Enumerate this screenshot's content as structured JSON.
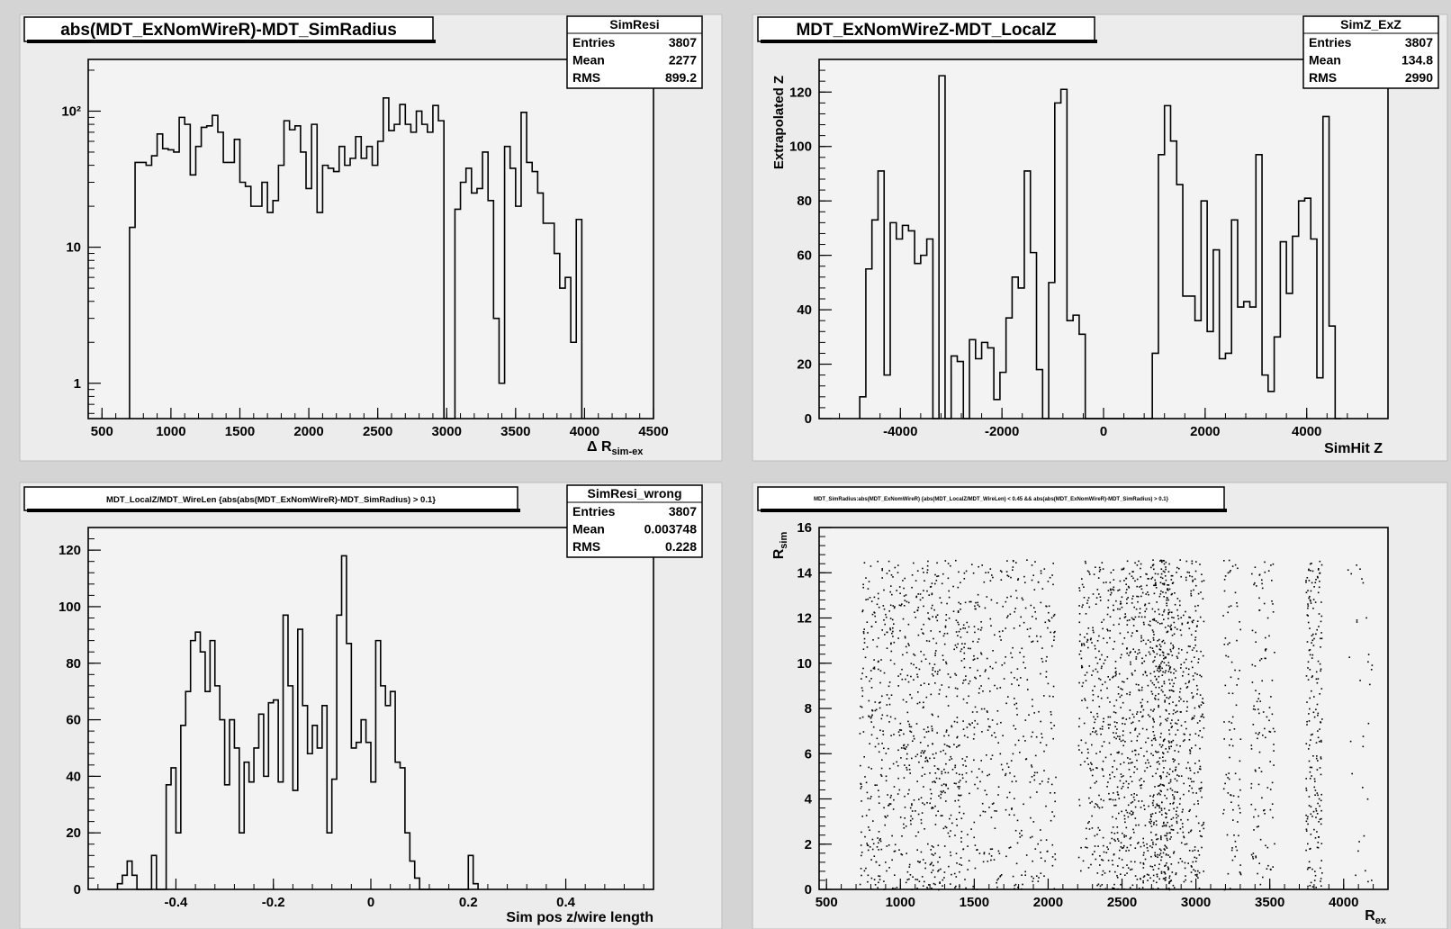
{
  "colors": {
    "background": "#d4d4d4",
    "pad": "#ececec",
    "frame": "#f3f3f3",
    "line": "#000000",
    "header_text": "#1a4fd6"
  },
  "chart_data": [
    {
      "type": "bar",
      "histogram_id": "SimResi",
      "title": "abs(MDT_ExNomWireR)-MDT_SimRadius",
      "xlabel": "Δ R",
      "xlabel_sub": "sim-ex",
      "ylabel": "",
      "log_y": true,
      "xlim": [
        400,
        4500
      ],
      "ylim": [
        0.55,
        240
      ],
      "x_ticks": [
        500,
        1000,
        1500,
        2000,
        2500,
        3000,
        3500,
        4000,
        4500
      ],
      "y_ticks": [
        1,
        10,
        100
      ],
      "y_tick_labels": [
        "1",
        "10",
        "10²"
      ],
      "stats": [
        [
          "Entries",
          "3807"
        ],
        [
          "Mean",
          "2277"
        ],
        [
          "RMS",
          "899.2"
        ]
      ],
      "bin_start": 700,
      "bin_width": 40,
      "values": [
        14,
        42,
        42,
        40,
        47,
        68,
        53,
        52,
        50,
        90,
        80,
        34,
        55,
        76,
        78,
        93,
        70,
        42,
        42,
        62,
        30,
        28,
        20,
        20,
        30,
        18,
        22,
        40,
        85,
        73,
        78,
        50,
        27,
        80,
        18,
        40,
        38,
        36,
        55,
        40,
        45,
        65,
        45,
        55,
        40,
        60,
        125,
        72,
        80,
        112,
        80,
        70,
        100,
        80,
        70,
        110,
        85,
        0.3,
        0.3,
        19,
        30,
        38,
        25,
        27,
        50,
        22,
        3,
        1,
        55,
        38,
        20,
        98,
        42,
        36,
        25,
        15,
        15,
        9,
        5,
        6,
        2,
        16
      ],
      "grid": false,
      "legend": "top-right"
    },
    {
      "type": "bar",
      "histogram_id": "SimZ_ExZ",
      "title": "MDT_ExNomWireZ-MDT_LocalZ",
      "xlabel": "SimHit Z",
      "ylabel": "Extrapolated Z",
      "xlim": [
        -5600,
        5600
      ],
      "ylim": [
        0,
        132
      ],
      "x_ticks": [
        -4000,
        -2000,
        0,
        2000,
        4000
      ],
      "y_ticks": [
        0,
        20,
        40,
        60,
        80,
        100,
        120
      ],
      "stats": [
        [
          "Entries",
          "3807"
        ],
        [
          "Mean",
          "134.8"
        ],
        [
          "RMS",
          "2990"
        ]
      ],
      "bin_start": -4800,
      "bin_width": 120,
      "values": [
        8,
        55,
        73,
        91,
        16,
        72,
        66,
        71,
        69,
        57,
        60,
        66,
        0,
        126,
        0,
        23,
        21,
        0,
        29,
        22,
        28,
        26,
        7,
        17,
        37,
        52,
        48,
        91,
        61,
        18,
        0,
        50,
        116,
        121,
        36,
        38,
        31,
        0,
        0,
        0,
        0,
        0,
        0,
        0,
        0,
        0,
        0,
        0,
        24,
        97,
        115,
        102,
        86,
        45,
        45,
        36,
        80,
        32,
        62,
        22,
        24,
        73,
        41,
        43,
        41,
        97,
        16,
        10,
        30,
        65,
        46,
        67,
        80,
        81,
        66,
        15,
        111,
        34,
        0
      ],
      "grid": false,
      "legend": "top-right"
    },
    {
      "type": "bar",
      "histogram_id": "SimResi_wrong",
      "title": "MDT_LocalZ/MDT_WireLen {abs(abs(MDT_ExNomWireR)-MDT_SimRadius) > 0.1}",
      "xlabel": "Sim pos z/wire length",
      "ylabel": "",
      "xlim": [
        -0.58,
        0.58
      ],
      "ylim": [
        0,
        128
      ],
      "x_ticks": [
        -0.4,
        -0.2,
        0,
        0.2,
        0.4
      ],
      "y_ticks": [
        0,
        20,
        40,
        60,
        80,
        100,
        120
      ],
      "stats": [
        [
          "Entries",
          "3807"
        ],
        [
          "Mean",
          "0.003748"
        ],
        [
          "RMS",
          "0.228"
        ]
      ],
      "bin_start": -0.52,
      "bin_width": 0.01,
      "values": [
        2,
        5,
        10,
        5,
        0,
        0,
        0,
        12,
        0,
        0,
        37,
        43,
        20,
        58,
        70,
        88,
        91,
        84,
        70,
        88,
        72,
        60,
        37,
        60,
        50,
        20,
        45,
        38,
        50,
        62,
        40,
        66,
        67,
        38,
        97,
        72,
        35,
        92,
        65,
        48,
        58,
        50,
        65,
        20,
        39,
        97,
        118,
        87,
        50,
        52,
        60,
        52,
        38,
        88,
        72,
        65,
        70,
        45,
        43,
        20,
        10,
        4,
        0,
        0,
        0,
        0,
        0,
        0,
        0,
        0,
        0,
        0,
        12,
        2
      ],
      "grid": false,
      "legend": "top-right"
    },
    {
      "type": "scatter",
      "title": "MDT_SimRadius:abs(MDT_ExNomWireR) {abs(MDT_LocalZ/MDT_WireLen) < 0.45 && abs(abs(MDT_ExNomWireR)-MDT_SimRadius) > 0.1}",
      "xlabel": "R",
      "xlabel_sub": "ex",
      "ylabel": "R",
      "ylabel_sub": "sim",
      "xlim": [
        450,
        4300
      ],
      "ylim": [
        0,
        16
      ],
      "x_ticks": [
        500,
        1000,
        1500,
        2000,
        2500,
        3000,
        3500,
        4000
      ],
      "y_ticks": [
        0,
        2,
        4,
        6,
        8,
        10,
        12,
        14,
        16
      ],
      "y_max_point": 14.6,
      "clusters": [
        {
          "x": [
            720,
            1450
          ],
          "n": 800
        },
        {
          "x": [
            1450,
            2050
          ],
          "n": 420
        },
        {
          "x": [
            2200,
            2450
          ],
          "n": 300
        },
        {
          "x": [
            2450,
            3050
          ],
          "n": 900
        },
        {
          "x": [
            2700,
            2850
          ],
          "n": 250
        },
        {
          "x": [
            3180,
            3300
          ],
          "n": 90
        },
        {
          "x": [
            3370,
            3530
          ],
          "n": 120
        },
        {
          "x": [
            3740,
            3850
          ],
          "n": 200
        },
        {
          "x": [
            4020,
            4200
          ],
          "n": 30
        }
      ],
      "grid": false
    }
  ]
}
